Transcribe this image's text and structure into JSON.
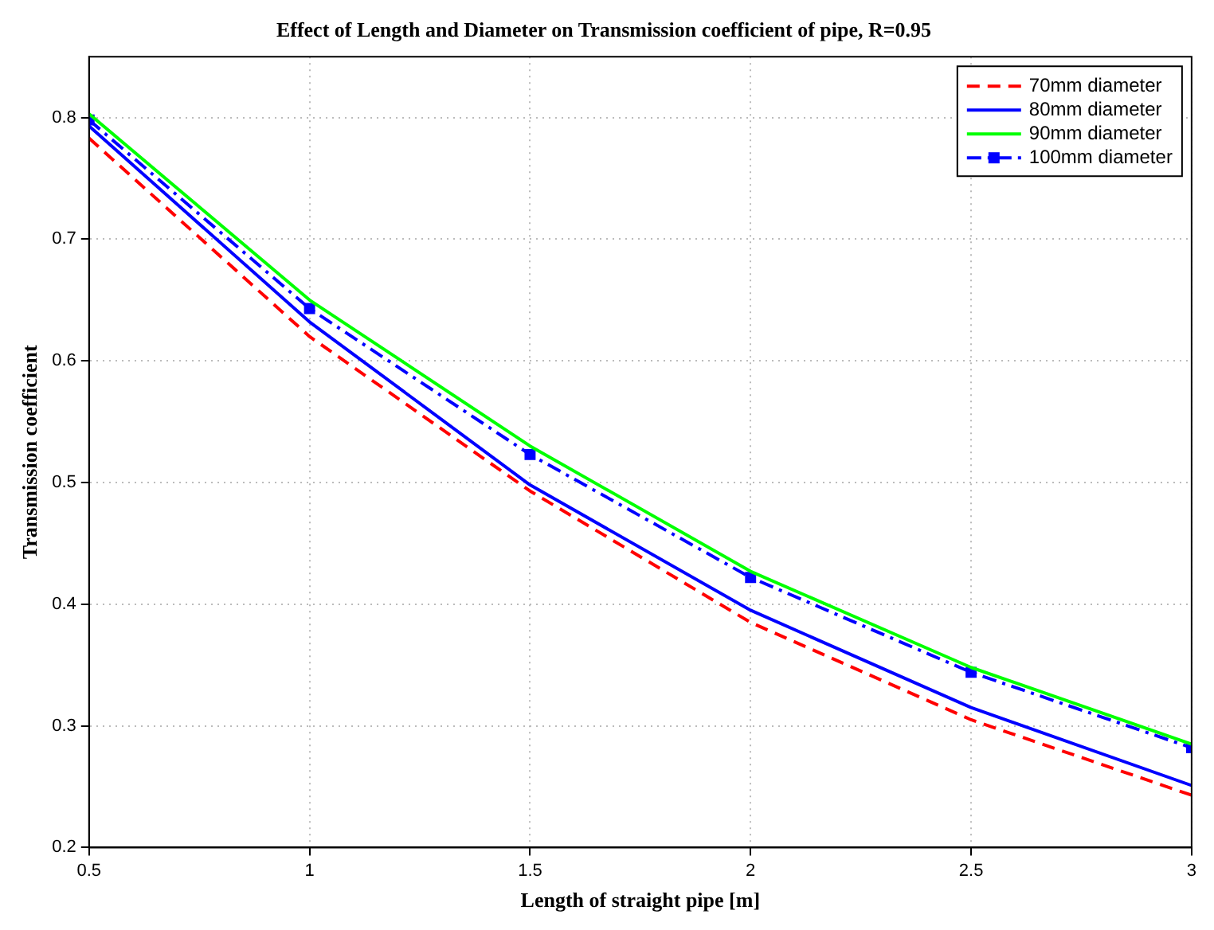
{
  "chart_data": {
    "type": "line",
    "title": "Effect of Length and Diameter on Transmission coefficient of pipe, R=0.95",
    "xlabel": "Length of straight pipe [m]",
    "ylabel": "Transmission coefficient",
    "x": [
      0.5,
      1,
      1.5,
      2,
      2.5,
      3
    ],
    "xlim": [
      0.5,
      3
    ],
    "xticks": [
      0.5,
      1,
      1.5,
      2,
      2.5,
      3
    ],
    "ylim": [
      0.2,
      0.85
    ],
    "yticks": [
      0.2,
      0.3,
      0.4,
      0.5,
      0.6,
      0.7,
      0.8
    ],
    "grid": true,
    "legend": "top right",
    "series": [
      {
        "name": "70mm diameter",
        "color": "#ff0000",
        "line_style": "dashed",
        "marker": "none",
        "values": [
          0.783,
          0.62,
          0.493,
          0.385,
          0.305,
          0.243
        ]
      },
      {
        "name": "80mm diameter",
        "color": "#0000ff",
        "line_style": "solid",
        "marker": "none",
        "values": [
          0.793,
          0.632,
          0.498,
          0.395,
          0.315,
          0.251
        ]
      },
      {
        "name": "90mm diameter",
        "color": "#00ff00",
        "line_style": "solid",
        "marker": "none",
        "values": [
          0.803,
          0.65,
          0.53,
          0.427,
          0.348,
          0.285
        ]
      },
      {
        "name": "100mm diameter",
        "color": "#0000ff",
        "line_style": "dashdot",
        "marker": "square",
        "values": [
          0.798,
          0.643,
          0.523,
          0.422,
          0.344,
          0.282
        ]
      }
    ]
  }
}
